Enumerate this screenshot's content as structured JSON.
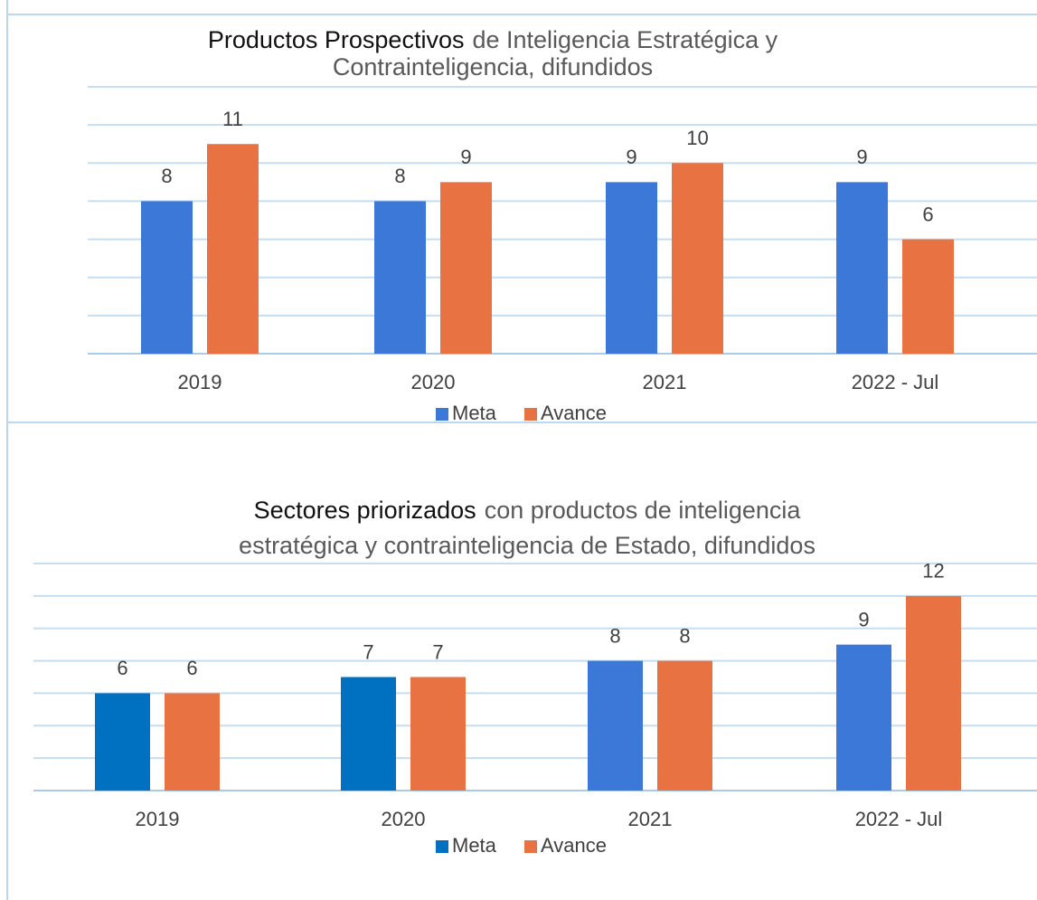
{
  "chart_data": [
    {
      "type": "bar",
      "title_lines": [
        {
          "emphasis": "Productos Prospectivos",
          "text": "de Inteligencia Estratégica y"
        },
        {
          "text": "Contrainteligencia, difundidos"
        }
      ],
      "categories": [
        "2019",
        "2020",
        "2021",
        "2022 - Jul"
      ],
      "series": [
        {
          "name": "Meta",
          "color": "#3c78d8",
          "colors": [
            "#3c78d8",
            "#3c78d8",
            "#3c78d8",
            "#3c78d8"
          ],
          "values": [
            8,
            8,
            9,
            9
          ]
        },
        {
          "name": "Avance",
          "color": "#e97242",
          "colors": [
            "#e97242",
            "#e97242",
            "#e97242",
            "#e97242"
          ],
          "values": [
            11,
            9,
            10,
            6
          ]
        }
      ],
      "ylim": [
        0,
        14
      ],
      "yticks": [
        0,
        2,
        4,
        6,
        8,
        10,
        12,
        14
      ],
      "grid": true,
      "legend": "bottom"
    },
    {
      "type": "bar",
      "title_lines": [
        {
          "emphasis": "Sectores priorizados",
          "text": "con productos de inteligencia"
        },
        {
          "text": "estratégica y contrainteligencia de Estado, difundidos"
        }
      ],
      "categories": [
        "2019",
        "2020",
        "2021",
        "2022 - Jul"
      ],
      "series": [
        {
          "name": "Meta",
          "color": "#0070c0",
          "colors": [
            "#0070c0",
            "#0070c0",
            "#3c78d8",
            "#3c78d8"
          ],
          "values": [
            6,
            7,
            8,
            9
          ]
        },
        {
          "name": "Avance",
          "color": "#e97242",
          "colors": [
            "#e97242",
            "#e97242",
            "#e97242",
            "#e97242"
          ],
          "values": [
            6,
            7,
            8,
            12
          ]
        }
      ],
      "ylim": [
        0,
        14
      ],
      "yticks": [
        0,
        2,
        4,
        6,
        8,
        10,
        12,
        14
      ],
      "grid": true,
      "legend": "bottom"
    }
  ]
}
